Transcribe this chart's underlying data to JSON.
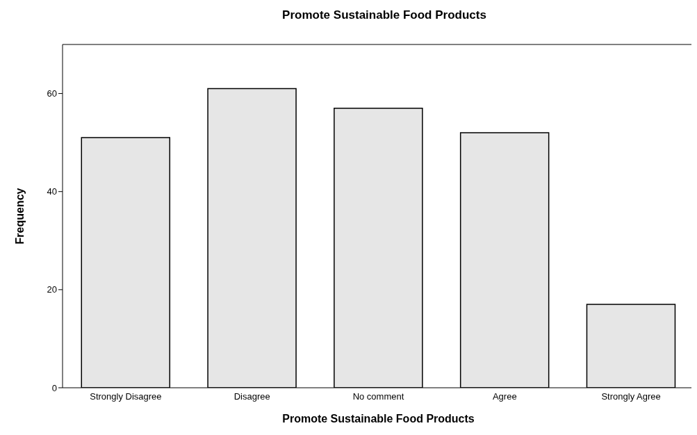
{
  "chart_data": {
    "type": "bar",
    "title": "Promote Sustainable Food Products",
    "xlabel": "Promote Sustainable Food Products",
    "ylabel": "Frequency",
    "categories": [
      "Strongly Disagree",
      "Disagree",
      "No comment",
      "Agree",
      "Strongly Agree"
    ],
    "values": [
      51,
      61,
      57,
      52,
      17
    ],
    "color": "#e6e6e6",
    "ylim": [
      0,
      70
    ],
    "yticks": [
      0,
      20,
      40,
      60
    ],
    "grid": false
  }
}
